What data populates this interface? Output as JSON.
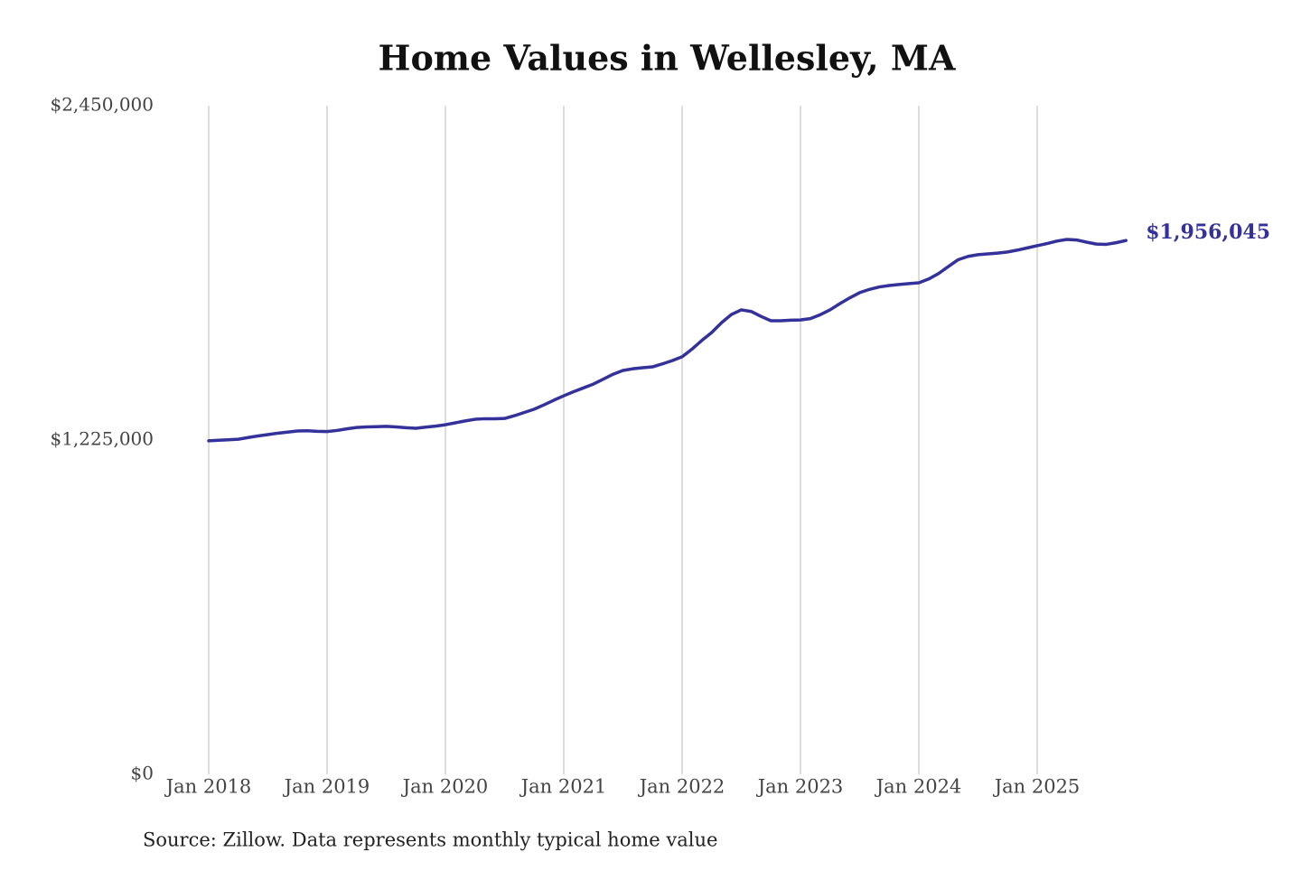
{
  "chart_data": {
    "type": "line",
    "title": "Home Values in Wellesley, MA",
    "source": "Source: Zillow. Data represents monthly typical home value",
    "x": [
      "2018-01",
      "2018-02",
      "2018-03",
      "2018-04",
      "2018-05",
      "2018-06",
      "2018-07",
      "2018-08",
      "2018-09",
      "2018-10",
      "2018-11",
      "2018-12",
      "2019-01",
      "2019-02",
      "2019-03",
      "2019-04",
      "2019-05",
      "2019-06",
      "2019-07",
      "2019-08",
      "2019-09",
      "2019-10",
      "2019-11",
      "2019-12",
      "2020-01",
      "2020-02",
      "2020-03",
      "2020-04",
      "2020-05",
      "2020-06",
      "2020-07",
      "2020-08",
      "2020-09",
      "2020-10",
      "2020-11",
      "2020-12",
      "2021-01",
      "2021-02",
      "2021-03",
      "2021-04",
      "2021-05",
      "2021-06",
      "2021-07",
      "2021-08",
      "2021-09",
      "2021-10",
      "2021-11",
      "2021-12",
      "2022-01",
      "2022-02",
      "2022-03",
      "2022-04",
      "2022-05",
      "2022-06",
      "2022-07",
      "2022-08",
      "2022-09",
      "2022-10",
      "2022-11",
      "2022-12",
      "2023-01",
      "2023-02",
      "2023-03",
      "2023-04",
      "2023-05",
      "2023-06",
      "2023-07",
      "2023-08",
      "2023-09",
      "2023-10",
      "2023-11",
      "2023-12",
      "2024-01",
      "2024-02",
      "2024-03",
      "2024-04",
      "2024-05",
      "2024-06",
      "2024-07",
      "2024-08",
      "2024-09",
      "2024-10",
      "2024-11",
      "2024-12",
      "2025-01",
      "2025-02",
      "2025-03",
      "2025-04",
      "2025-05",
      "2025-06",
      "2025-07",
      "2025-08",
      "2025-09",
      "2025-10"
    ],
    "series": [
      {
        "name": "Home value",
        "color": "#35319a",
        "values": [
          1222000,
          1224000,
          1226000,
          1228000,
          1234000,
          1240000,
          1245000,
          1250000,
          1254000,
          1258000,
          1259000,
          1257000,
          1256000,
          1260000,
          1266000,
          1271000,
          1273000,
          1274000,
          1275000,
          1273000,
          1270000,
          1268000,
          1272000,
          1276000,
          1281000,
          1288000,
          1295000,
          1301000,
          1303000,
          1303000,
          1304000,
          1314000,
          1326000,
          1338000,
          1354000,
          1371000,
          1387000,
          1402000,
          1416000,
          1430000,
          1448000,
          1466000,
          1480000,
          1486000,
          1490000,
          1493000,
          1504000,
          1516000,
          1530000,
          1558000,
          1590000,
          1619000,
          1655000,
          1685000,
          1702000,
          1696000,
          1678000,
          1662000,
          1662000,
          1664000,
          1665000,
          1670000,
          1684000,
          1702000,
          1725000,
          1746000,
          1765000,
          1777000,
          1786000,
          1791000,
          1795000,
          1798000,
          1801000,
          1815000,
          1835000,
          1861000,
          1886000,
          1898000,
          1904000,
          1907000,
          1910000,
          1914000,
          1921000,
          1929000,
          1937000,
          1945000,
          1954000,
          1960000,
          1958000,
          1950000,
          1943000,
          1942000,
          1948000,
          1956045
        ],
        "value_labels": [
          null,
          null,
          null,
          null,
          null,
          null,
          null,
          null,
          null,
          null,
          null,
          null,
          null,
          null,
          null,
          null,
          null,
          null,
          null,
          null,
          null,
          null,
          null,
          null,
          null,
          null,
          null,
          null,
          null,
          null,
          null,
          null,
          null,
          null,
          null,
          null,
          null,
          null,
          null,
          null,
          null,
          null,
          null,
          null,
          null,
          null,
          null,
          null,
          null,
          null,
          null,
          null,
          null,
          null,
          null,
          null,
          null,
          null,
          null,
          null,
          null,
          null,
          null,
          null,
          null,
          null,
          null,
          null,
          null,
          null,
          null,
          null,
          null,
          null,
          null,
          null,
          null,
          null,
          null,
          null,
          null,
          null,
          null,
          null,
          null,
          null,
          null,
          null,
          null,
          null,
          null,
          null,
          null,
          "$1,956,045"
        ]
      }
    ],
    "xticks": [
      {
        "value": "2018-01",
        "label": "Jan 2018"
      },
      {
        "value": "2019-01",
        "label": "Jan 2019"
      },
      {
        "value": "2020-01",
        "label": "Jan 2020"
      },
      {
        "value": "2021-01",
        "label": "Jan 2021"
      },
      {
        "value": "2022-01",
        "label": "Jan 2022"
      },
      {
        "value": "2023-01",
        "label": "Jan 2023"
      },
      {
        "value": "2024-01",
        "label": "Jan 2024"
      },
      {
        "value": "2025-01",
        "label": "Jan 2025"
      }
    ],
    "ylim": [
      0,
      2450000
    ],
    "yticks": [
      {
        "value": 0,
        "label": "$0"
      },
      {
        "value": 1225000,
        "label": "$1,225,000"
      },
      {
        "value": 2450000,
        "label": "$2,450,000"
      }
    ],
    "grid": "x"
  }
}
